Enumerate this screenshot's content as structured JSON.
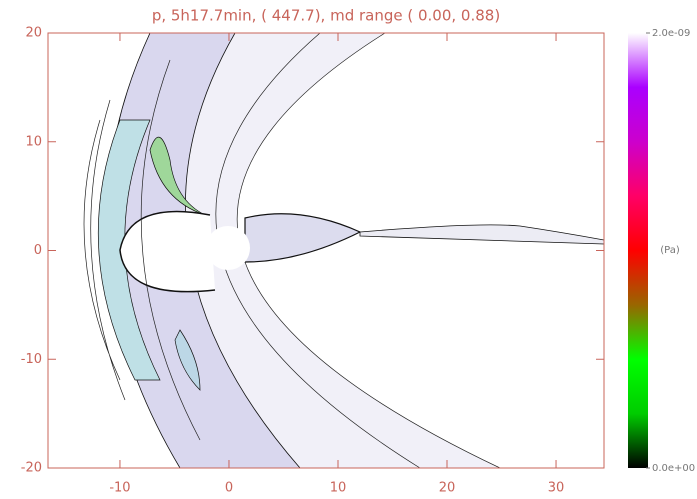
{
  "chart_data": {
    "type": "contour",
    "title": "p, 5h17.7min, ( 447.7), md range ( 0.00, 0.88)",
    "xlim": [
      -16.6,
      34.4
    ],
    "ylim": [
      -20,
      20
    ],
    "xticks": [
      -10,
      0,
      10,
      20,
      30
    ],
    "yticks": [
      -20,
      -10,
      0,
      10,
      20
    ],
    "axis_color": "#c8645a",
    "colorbar": {
      "unit": "(Pa)",
      "clim": [
        0,
        2e-09
      ],
      "ticks": [
        {
          "value": 0,
          "label": "0.0e+00"
        },
        {
          "value": 2e-09,
          "label": "2.0e-09"
        }
      ],
      "colors": [
        "#000000",
        "#00cc00",
        "#00ff00",
        "#996600",
        "#ff0000",
        "#ff0066",
        "#cc00cc",
        "#aa00ff",
        "#ffffff"
      ]
    }
  }
}
